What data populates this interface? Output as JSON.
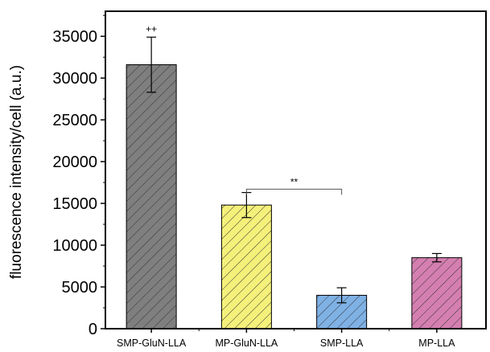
{
  "chart_data": {
    "type": "bar",
    "title": "",
    "xlabel": "",
    "ylabel": "fluorescence intensity/cell (a.u.)",
    "ylim": [
      0,
      38000
    ],
    "yticks": [
      0,
      5000,
      10000,
      15000,
      20000,
      25000,
      30000,
      35000
    ],
    "ytick_labels": [
      "0",
      "5000",
      "10000",
      "15000",
      "20000",
      "25000",
      "30000",
      "35000"
    ],
    "categories": [
      "SMP-GluN-LLA",
      "MP-GluN-LLA",
      "SMP-LLA",
      "MP-LLA"
    ],
    "values": [
      31600,
      14800,
      4000,
      8500
    ],
    "errors": [
      3300,
      1500,
      900,
      500
    ],
    "colors": [
      "#7f7f7f",
      "#f5f07a",
      "#7fb1e5",
      "#d57fb0"
    ],
    "hatch": "diagonal",
    "grid": false,
    "legend": "none",
    "annotations": [
      {
        "text": "++",
        "category_index": 0,
        "y": 35200
      },
      {
        "text": "**",
        "bracket_from": 1,
        "bracket_to": 2,
        "y": 16700
      }
    ]
  }
}
